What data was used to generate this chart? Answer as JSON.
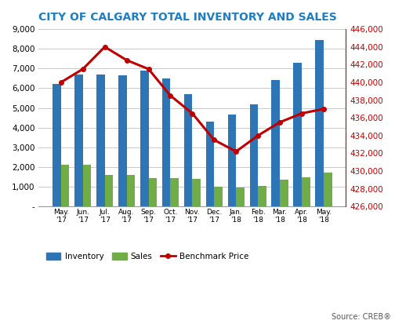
{
  "title": "CITY OF CALGARY TOTAL INVENTORY AND SALES",
  "title_color": "#1F7EC2",
  "categories": [
    "May.\n'17",
    "Jun.\n'17",
    "Jul.\n'17",
    "Aug.\n'17",
    "Sep.\n'17",
    "Oct.\n'17",
    "Nov.\n'17",
    "Dec.\n'17",
    "Jan.\n'18",
    "Feb.\n'18",
    "Mar.\n'18",
    "Apr.\n'18",
    "May.\n'18"
  ],
  "inventory": [
    6200,
    6700,
    6700,
    6650,
    6900,
    6500,
    5700,
    4300,
    4650,
    5200,
    6400,
    7300,
    8450
  ],
  "sales": [
    2100,
    2100,
    1600,
    1600,
    1450,
    1450,
    1400,
    1000,
    950,
    1050,
    1350,
    1500,
    1700
  ],
  "benchmark_price": [
    440000,
    441500,
    444000,
    442500,
    441500,
    438500,
    436500,
    433500,
    432200,
    434000,
    435500,
    436500,
    437000
  ],
  "bar_color_inventory": "#2E75B6",
  "bar_color_sales": "#70AD47",
  "line_color": "#C00000",
  "left_ylim": [
    0,
    9000
  ],
  "left_yticks": [
    0,
    1000,
    2000,
    3000,
    4000,
    5000,
    6000,
    7000,
    8000,
    9000
  ],
  "right_ylim": [
    426000,
    446000
  ],
  "right_yticks": [
    426000,
    428000,
    430000,
    432000,
    434000,
    436000,
    438000,
    440000,
    442000,
    444000,
    446000
  ],
  "source_text": "Source: CREB®",
  "legend_labels": [
    "Inventory",
    "Sales",
    "Benchmark Price"
  ],
  "background_color": "#ffffff",
  "grid_color": "#c0c0c0"
}
